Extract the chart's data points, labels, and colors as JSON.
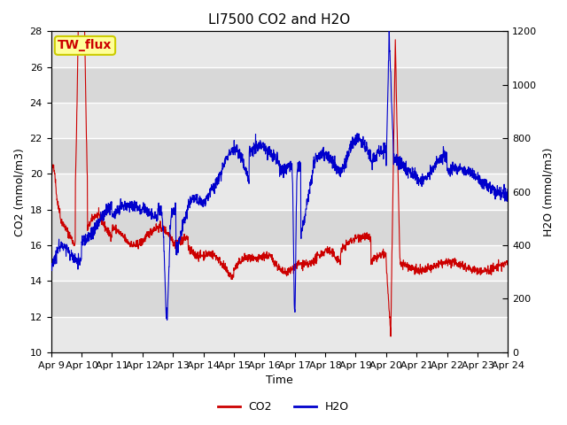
{
  "title": "LI7500 CO2 and H2O",
  "xlabel": "Time",
  "ylabel_left": "CO2 (mmol/m3)",
  "ylabel_right": "H2O (mmol/m3)",
  "annotation": "TW_flux",
  "xlim": [
    0,
    15
  ],
  "ylim_left": [
    10,
    28
  ],
  "ylim_right": [
    0,
    1200
  ],
  "yticks_left": [
    10,
    12,
    14,
    16,
    18,
    20,
    22,
    24,
    26,
    28
  ],
  "yticks_right": [
    0,
    200,
    400,
    600,
    800,
    1000,
    1200
  ],
  "xtick_labels": [
    "Apr 9",
    "Apr 10",
    "Apr 11",
    "Apr 12",
    "Apr 13",
    "Apr 14",
    "Apr 15",
    "Apr 16",
    "Apr 17",
    "Apr 18",
    "Apr 19",
    "Apr 20",
    "Apr 21",
    "Apr 22",
    "Apr 23",
    "Apr 24"
  ],
  "co2_color": "#cc0000",
  "h2o_color": "#0000cc",
  "plot_bg_color": "#e8e8e8",
  "figure_bg_color": "#ffffff",
  "grid_color": "#ffffff",
  "band_light": "#e8e8e8",
  "band_dark": "#d8d8d8",
  "annotation_bg": "#ffff99",
  "annotation_border": "#cccc00",
  "legend_co2": "CO2",
  "legend_h2o": "H2O",
  "title_fontsize": 11,
  "label_fontsize": 9,
  "tick_fontsize": 8,
  "annotation_fontsize": 10
}
